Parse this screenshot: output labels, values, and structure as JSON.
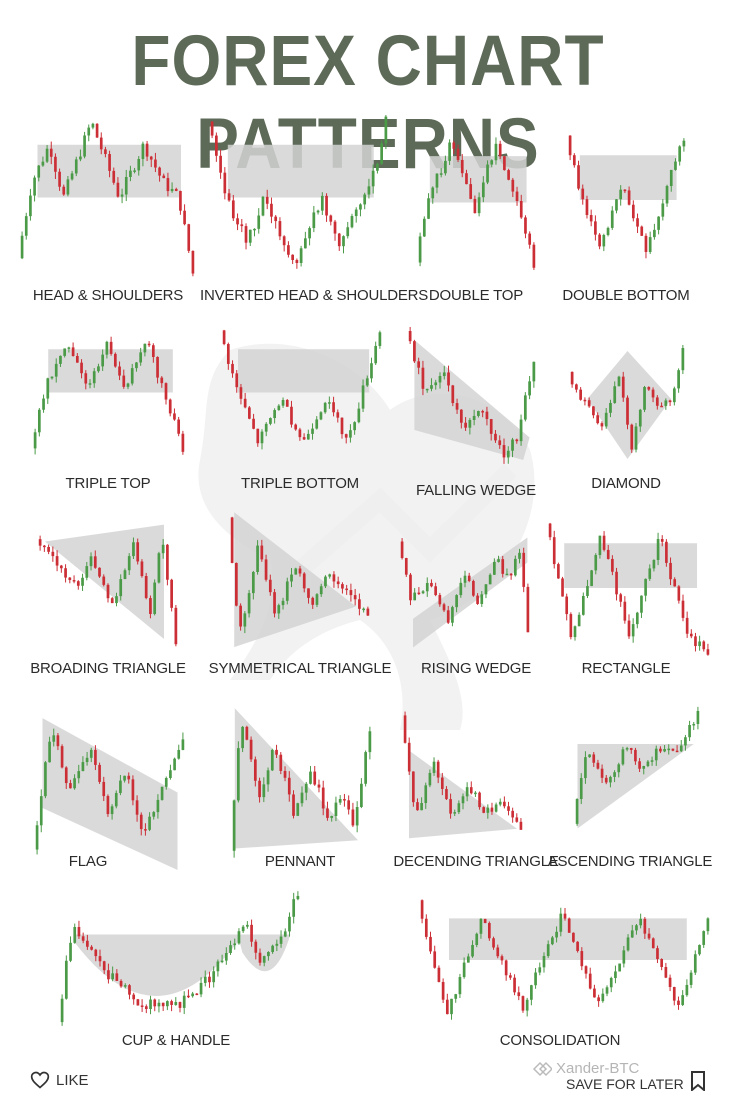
{
  "title": "FOREX CHART PATTERNS",
  "colors": {
    "bull": "#4a9a47",
    "bear": "#cc2e36",
    "zone": "#d4d4d4",
    "title": "#5e6a58",
    "watermark": "#e4e4e4"
  },
  "patterns": [
    {
      "id": "head-shoulders",
      "label": "HEAD & SHOULDERS",
      "zone": "rect",
      "path": [
        [
          0,
          0.1
        ],
        [
          0.08,
          0.6
        ],
        [
          0.18,
          0.85
        ],
        [
          0.26,
          0.5
        ],
        [
          0.42,
          1.0
        ],
        [
          0.58,
          0.5
        ],
        [
          0.72,
          0.85
        ],
        [
          0.83,
          0.6
        ],
        [
          0.92,
          0.5
        ],
        [
          1.0,
          0.0
        ]
      ]
    },
    {
      "id": "inverted-head-shoulders",
      "label": "INVERTED HEAD & SHOULDERS",
      "zone": "rect",
      "path": [
        [
          0,
          1.0
        ],
        [
          0.12,
          0.45
        ],
        [
          0.22,
          0.2
        ],
        [
          0.32,
          0.5
        ],
        [
          0.48,
          0.05
        ],
        [
          0.64,
          0.5
        ],
        [
          0.74,
          0.2
        ],
        [
          0.84,
          0.45
        ],
        [
          0.92,
          0.6
        ],
        [
          1.0,
          1.0
        ]
      ]
    },
    {
      "id": "double-top",
      "label": "DOUBLE TOP",
      "zone": "rect",
      "path": [
        [
          0,
          0.05
        ],
        [
          0.1,
          0.5
        ],
        [
          0.3,
          0.95
        ],
        [
          0.5,
          0.45
        ],
        [
          0.68,
          0.95
        ],
        [
          0.86,
          0.5
        ],
        [
          1.0,
          0.05
        ]
      ]
    },
    {
      "id": "double-bottom",
      "label": "DOUBLE BOTTOM",
      "zone": "rect",
      "path": [
        [
          0,
          1.0
        ],
        [
          0.1,
          0.65
        ],
        [
          0.28,
          0.1
        ],
        [
          0.48,
          0.6
        ],
        [
          0.68,
          0.1
        ],
        [
          0.86,
          0.6
        ],
        [
          1.0,
          1.0
        ]
      ]
    },
    {
      "id": "triple-top",
      "label": "TRIPLE TOP",
      "zone": "rect",
      "path": [
        [
          0,
          0.05
        ],
        [
          0.1,
          0.55
        ],
        [
          0.25,
          0.9
        ],
        [
          0.38,
          0.55
        ],
        [
          0.5,
          0.9
        ],
        [
          0.62,
          0.55
        ],
        [
          0.76,
          0.9
        ],
        [
          0.88,
          0.5
        ],
        [
          1.0,
          0.05
        ]
      ]
    },
    {
      "id": "triple-bottom",
      "label": "TRIPLE BOTTOM",
      "zone": "rect",
      "path": [
        [
          0,
          1.0
        ],
        [
          0.1,
          0.55
        ],
        [
          0.24,
          0.1
        ],
        [
          0.38,
          0.45
        ],
        [
          0.52,
          0.1
        ],
        [
          0.66,
          0.45
        ],
        [
          0.8,
          0.1
        ],
        [
          0.9,
          0.55
        ],
        [
          1.0,
          1.0
        ]
      ]
    },
    {
      "id": "falling-wedge",
      "label": "FALLING WEDGE",
      "zone": "wedge-down",
      "path": [
        [
          0,
          1.0
        ],
        [
          0.15,
          0.55
        ],
        [
          0.3,
          0.7
        ],
        [
          0.45,
          0.25
        ],
        [
          0.6,
          0.45
        ],
        [
          0.75,
          0.1
        ],
        [
          0.88,
          0.25
        ],
        [
          1.0,
          0.8
        ]
      ]
    },
    {
      "id": "diamond",
      "label": "DIAMOND",
      "zone": "diamond",
      "path": [
        [
          0,
          0.8
        ],
        [
          0.12,
          0.55
        ],
        [
          0.3,
          0.3
        ],
        [
          0.45,
          0.8
        ],
        [
          0.55,
          0.1
        ],
        [
          0.68,
          0.7
        ],
        [
          0.8,
          0.45
        ],
        [
          0.9,
          0.55
        ],
        [
          1.0,
          1.0
        ]
      ]
    },
    {
      "id": "broadening-triangle",
      "label": "BROADING TRIANGLE",
      "zone": "broad",
      "path": [
        [
          0,
          0.9
        ],
        [
          0.15,
          0.72
        ],
        [
          0.28,
          0.5
        ],
        [
          0.4,
          0.75
        ],
        [
          0.55,
          0.35
        ],
        [
          0.7,
          0.85
        ],
        [
          0.82,
          0.25
        ],
        [
          0.9,
          0.95
        ],
        [
          1.0,
          0.0
        ]
      ]
    },
    {
      "id": "symmetrical-triangle",
      "label": "SYMMETRICAL TRIANGLE",
      "zone": "sym",
      "path": [
        [
          0,
          0.95
        ],
        [
          0.08,
          0.05
        ],
        [
          0.22,
          0.75
        ],
        [
          0.34,
          0.2
        ],
        [
          0.48,
          0.6
        ],
        [
          0.6,
          0.3
        ],
        [
          0.72,
          0.52
        ],
        [
          0.82,
          0.4
        ],
        [
          1.0,
          0.2
        ]
      ]
    },
    {
      "id": "rising-wedge",
      "label": "RISING WEDGE",
      "zone": "wedge-up",
      "path": [
        [
          0,
          0.9
        ],
        [
          0.1,
          0.4
        ],
        [
          0.25,
          0.55
        ],
        [
          0.38,
          0.2
        ],
        [
          0.52,
          0.65
        ],
        [
          0.62,
          0.35
        ],
        [
          0.76,
          0.75
        ],
        [
          0.86,
          0.55
        ],
        [
          0.94,
          0.85
        ],
        [
          1.0,
          0.1
        ]
      ]
    },
    {
      "id": "rectangle",
      "label": "RECTANGLE",
      "zone": "rect",
      "path": [
        [
          0,
          1.0
        ],
        [
          0.16,
          0.12
        ],
        [
          0.34,
          0.9
        ],
        [
          0.52,
          0.12
        ],
        [
          0.7,
          0.9
        ],
        [
          0.88,
          0.12
        ],
        [
          1.0,
          0.0
        ]
      ]
    },
    {
      "id": "flag",
      "label": "FLAG",
      "zone": "flag",
      "path": [
        [
          0,
          0.1
        ],
        [
          0.12,
          0.95
        ],
        [
          0.25,
          0.5
        ],
        [
          0.38,
          0.8
        ],
        [
          0.5,
          0.35
        ],
        [
          0.62,
          0.65
        ],
        [
          0.74,
          0.2
        ],
        [
          0.86,
          0.5
        ],
        [
          1.0,
          0.9
        ]
      ]
    },
    {
      "id": "pennant",
      "label": "PENNANT",
      "zone": "pennant",
      "path": [
        [
          0,
          0.05
        ],
        [
          0.08,
          0.95
        ],
        [
          0.2,
          0.4
        ],
        [
          0.32,
          0.75
        ],
        [
          0.46,
          0.3
        ],
        [
          0.58,
          0.6
        ],
        [
          0.7,
          0.25
        ],
        [
          0.8,
          0.42
        ],
        [
          0.88,
          0.2
        ],
        [
          1.0,
          0.85
        ]
      ]
    },
    {
      "id": "descending-triangle",
      "label": "DECENDING TRIANGLE",
      "zone": "desc",
      "path": [
        [
          0,
          1.0
        ],
        [
          0.12,
          0.2
        ],
        [
          0.28,
          0.6
        ],
        [
          0.42,
          0.2
        ],
        [
          0.56,
          0.45
        ],
        [
          0.7,
          0.2
        ],
        [
          0.84,
          0.32
        ],
        [
          1.0,
          0.05
        ]
      ]
    },
    {
      "id": "ascending-triangle",
      "label": "ASCENDING TRIANGLE",
      "zone": "asc",
      "path": [
        [
          0,
          0.05
        ],
        [
          0.12,
          0.7
        ],
        [
          0.26,
          0.35
        ],
        [
          0.42,
          0.7
        ],
        [
          0.56,
          0.5
        ],
        [
          0.72,
          0.72
        ],
        [
          0.84,
          0.62
        ],
        [
          1.0,
          1.0
        ]
      ]
    },
    {
      "id": "cup-handle",
      "label": "CUP & HANDLE",
      "zone": "cup",
      "path": [
        [
          0,
          0.05
        ],
        [
          0.06,
          0.75
        ],
        [
          0.18,
          0.45
        ],
        [
          0.34,
          0.18
        ],
        [
          0.5,
          0.16
        ],
        [
          0.64,
          0.38
        ],
        [
          0.74,
          0.65
        ],
        [
          0.78,
          0.78
        ],
        [
          0.84,
          0.5
        ],
        [
          0.92,
          0.6
        ],
        [
          1.0,
          1.0
        ]
      ]
    },
    {
      "id": "consolidation",
      "label": "CONSOLIDATION",
      "zone": "rect",
      "path": [
        [
          0,
          1.0
        ],
        [
          0.1,
          0.05
        ],
        [
          0.22,
          0.85
        ],
        [
          0.36,
          0.1
        ],
        [
          0.5,
          0.9
        ],
        [
          0.62,
          0.1
        ],
        [
          0.76,
          0.85
        ],
        [
          0.9,
          0.1
        ],
        [
          1.0,
          0.85
        ]
      ]
    }
  ],
  "footer": {
    "like_icon": "heart-icon",
    "like_label": "LIKE",
    "save_icon": "bookmark-icon",
    "save_label": "SAVE FOR LATER",
    "credit_label": "Xander-BTC"
  }
}
